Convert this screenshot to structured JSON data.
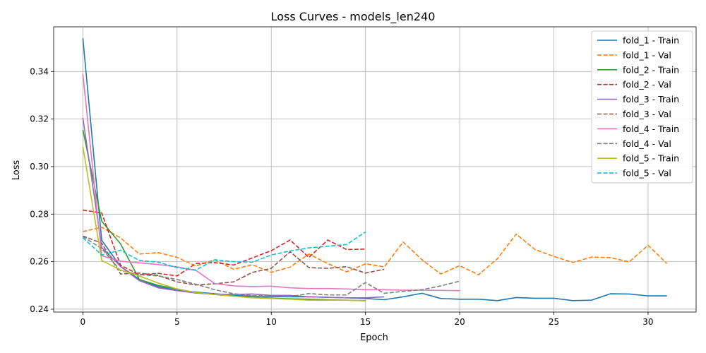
{
  "chart_data": {
    "type": "line",
    "title": "Loss Curves - models_len240",
    "xlabel": "Epoch",
    "ylabel": "Loss",
    "xlim": [
      -1.55,
      32.55
    ],
    "ylim": [
      0.2388,
      0.3588
    ],
    "xticks": [
      0,
      5,
      10,
      15,
      20,
      25,
      30
    ],
    "yticks": [
      0.24,
      0.26,
      0.28,
      0.3,
      0.32,
      0.34
    ],
    "grid": true,
    "legend_position": "top-right",
    "series": [
      {
        "name": "fold_1 - Train",
        "color": "#1f77b4",
        "dash": "solid",
        "y": [
          0.354,
          0.269,
          0.258,
          0.2525,
          0.2495,
          0.248,
          0.2472,
          0.2465,
          0.2458,
          0.2455,
          0.2453,
          0.2452,
          0.2452,
          0.245,
          0.2448,
          0.2445,
          0.244,
          0.2452,
          0.2467,
          0.2445,
          0.2442,
          0.2442,
          0.2436,
          0.2449,
          0.2446,
          0.2446,
          0.2436,
          0.2438,
          0.2465,
          0.2464,
          0.2456,
          0.2456
        ]
      },
      {
        "name": "fold_1 - Val",
        "color": "#ff7f0e",
        "dash": "dashed",
        "y": [
          0.2726,
          0.2745,
          0.27,
          0.2632,
          0.2638,
          0.2618,
          0.2582,
          0.2608,
          0.2568,
          0.2587,
          0.2555,
          0.2577,
          0.2632,
          0.2592,
          0.2557,
          0.2591,
          0.2578,
          0.2683,
          0.2608,
          0.2548,
          0.2583,
          0.2545,
          0.2612,
          0.2716,
          0.2651,
          0.2622,
          0.2597,
          0.2619,
          0.2617,
          0.2599,
          0.2669,
          0.2592
        ]
      },
      {
        "name": "fold_2 - Train",
        "color": "#2ca02c",
        "dash": "solid",
        "y": [
          0.3155,
          0.277,
          0.2675,
          0.2525,
          0.25,
          0.2485,
          0.247,
          0.2462,
          0.2455,
          0.245,
          0.2447,
          0.2444,
          0.2442,
          0.244,
          0.2438,
          0.2436
        ]
      },
      {
        "name": "fold_2 - Val",
        "color": "#d62728",
        "dash": "dashed",
        "y": [
          0.2817,
          0.2805,
          0.2585,
          0.2545,
          0.2551,
          0.254,
          0.2592,
          0.2596,
          0.2586,
          0.2616,
          0.2646,
          0.2691,
          0.2618,
          0.2691,
          0.2651,
          0.2653
        ]
      },
      {
        "name": "fold_3 - Train",
        "color": "#9467bd",
        "dash": "solid",
        "y": [
          0.3205,
          0.266,
          0.258,
          0.252,
          0.249,
          0.2478,
          0.2468,
          0.2462,
          0.2462,
          0.2464,
          0.2458,
          0.2458,
          0.2452,
          0.245,
          0.2448,
          0.2448,
          0.2452
        ]
      },
      {
        "name": "fold_3 - Val",
        "color": "#8c564b",
        "dash": "dashed",
        "y": [
          0.2708,
          0.2678,
          0.2548,
          0.2552,
          0.2542,
          0.2515,
          0.2502,
          0.2507,
          0.2515,
          0.2555,
          0.2572,
          0.2642,
          0.2575,
          0.2572,
          0.2579,
          0.2552,
          0.2568
        ]
      },
      {
        "name": "fold_4 - Train",
        "color": "#e377c2",
        "dash": "solid",
        "y": [
          0.339,
          0.2625,
          0.2602,
          0.2595,
          0.2588,
          0.2578,
          0.2563,
          0.2508,
          0.2498,
          0.2495,
          0.2497,
          0.249,
          0.2487,
          0.2487,
          0.2485,
          0.2482,
          0.2482,
          0.248,
          0.248,
          0.2479,
          0.2478
        ]
      },
      {
        "name": "fold_4 - Val",
        "color": "#7f7f7f",
        "dash": "dashed",
        "y": [
          0.2706,
          0.2655,
          0.2562,
          0.2545,
          0.254,
          0.2525,
          0.2505,
          0.2482,
          0.2465,
          0.2457,
          0.2455,
          0.2453,
          0.2466,
          0.246,
          0.246,
          0.2512,
          0.2467,
          0.2475,
          0.2482,
          0.2498,
          0.2518
        ]
      },
      {
        "name": "fold_5 - Train",
        "color": "#bcbd22",
        "dash": "solid",
        "y": [
          0.3085,
          0.2605,
          0.2565,
          0.254,
          0.251,
          0.2485,
          0.247,
          0.2462,
          0.2455,
          0.2448,
          0.2445,
          0.2442,
          0.2438,
          0.2438,
          0.2438,
          0.2435
        ]
      },
      {
        "name": "fold_5 - Val",
        "color": "#17becf",
        "dash": "dashed",
        "y": [
          0.2701,
          0.2628,
          0.2648,
          0.2605,
          0.2598,
          0.2575,
          0.2565,
          0.2608,
          0.26,
          0.2598,
          0.2628,
          0.2645,
          0.2658,
          0.2665,
          0.2672,
          0.2725
        ]
      }
    ]
  }
}
